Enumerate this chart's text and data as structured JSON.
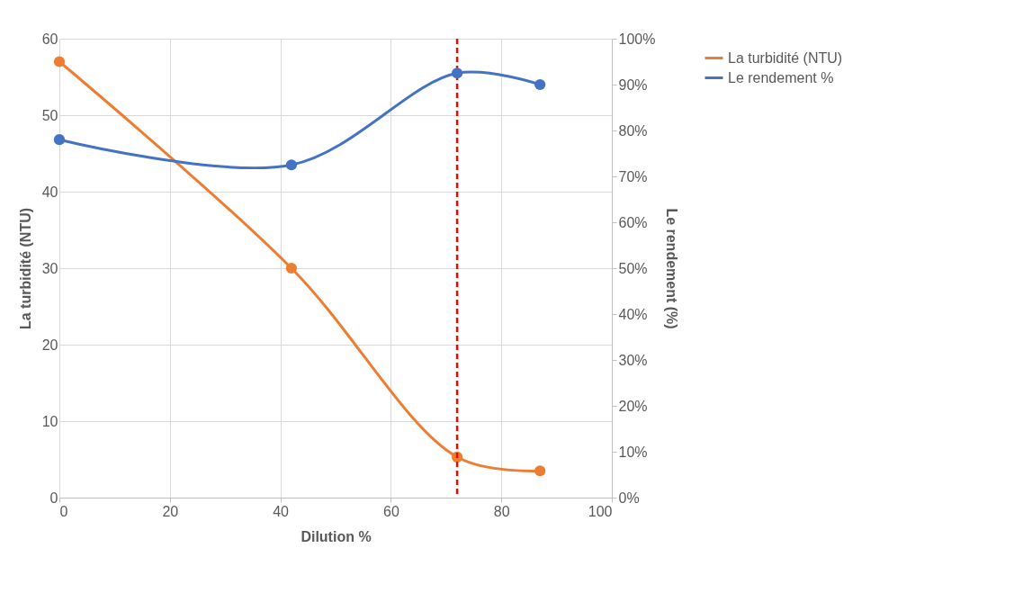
{
  "chart_data": {
    "type": "line",
    "xlabel": "Dilution %",
    "ylabel": "La turbidité (NTU)",
    "y2label": "Le rendement (%)",
    "x": [
      0,
      42,
      72,
      87
    ],
    "series": [
      {
        "name": "La turbidité (NTU)",
        "color": "#ed7d31",
        "values": [
          57,
          30,
          5.3,
          3.5
        ]
      },
      {
        "name": "Le rendement %",
        "color": "#4472c4",
        "values": [
          78,
          72.5,
          92.5,
          90
        ],
        "axis": "y2"
      }
    ],
    "xlim": [
      0,
      100
    ],
    "xticks": [
      0,
      20,
      40,
      60,
      80,
      100
    ],
    "ylim": [
      0,
      60
    ],
    "yticks": [
      0,
      10,
      20,
      30,
      40,
      50,
      60
    ],
    "y2lim": [
      0,
      100
    ],
    "y2ticks": [
      {
        "value": 0,
        "label": "0%"
      },
      {
        "value": 10,
        "label": "10%"
      },
      {
        "value": 20,
        "label": "20%"
      },
      {
        "value": 30,
        "label": "30%"
      },
      {
        "value": 40,
        "label": "40%"
      },
      {
        "value": 50,
        "label": "50%"
      },
      {
        "value": 60,
        "label": "60%"
      },
      {
        "value": 70,
        "label": "70%"
      },
      {
        "value": 80,
        "label": "80%"
      },
      {
        "value": 90,
        "label": "90%"
      },
      {
        "value": 100,
        "label": "100%"
      }
    ],
    "ref_lines": [
      {
        "axis": "x",
        "value": 72,
        "color": "#ff0000",
        "line_style": "dashed"
      }
    ],
    "grid": true,
    "legend": "right",
    "marker": "circle",
    "line_style": "solid"
  }
}
